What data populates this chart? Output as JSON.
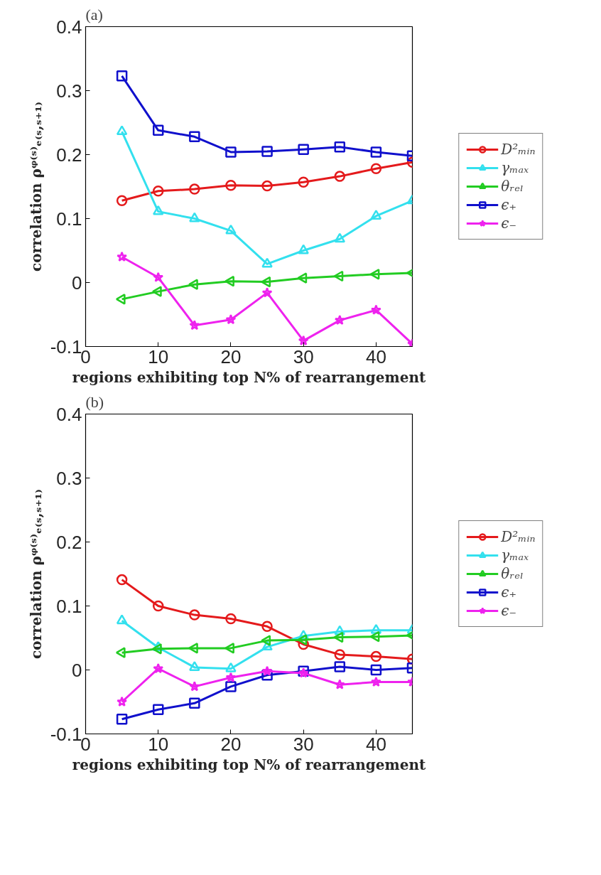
{
  "chart_data": [
    {
      "type": "line",
      "title": "(a)",
      "xlabel": "regions exhibiting top N% of rearrangement",
      "ylabel": "correlation ρᵠ⁽ˢ⁾ₑ₍ₛ,ₛ₊₁₎",
      "x": [
        5,
        10,
        15,
        20,
        25,
        30,
        35,
        40,
        45
      ],
      "xlim": [
        0,
        45
      ],
      "xticks": [
        0,
        10,
        20,
        30,
        40
      ],
      "ylim": [
        -0.1,
        0.4
      ],
      "yticks": [
        -0.1,
        0,
        0.1,
        0.2,
        0.3,
        0.4
      ],
      "grid": false,
      "legend": "right",
      "series": [
        {
          "name": "D²ₘᵢₙ",
          "color": "#e41a1c",
          "marker": "circle",
          "values": [
            0.128,
            0.143,
            0.146,
            0.152,
            0.151,
            0.157,
            0.166,
            0.178,
            0.188
          ]
        },
        {
          "name": "γₘₐₓ",
          "color": "#33e0ee",
          "marker": "triangle",
          "values": [
            0.236,
            0.111,
            0.1,
            0.081,
            0.029,
            0.05,
            0.068,
            0.104,
            0.128
          ]
        },
        {
          "name": "θᵣₑₗ",
          "color": "#22cc22",
          "marker": "triangle_left",
          "values": [
            -0.026,
            -0.014,
            -0.003,
            0.002,
            0.001,
            0.007,
            0.01,
            0.013,
            0.015
          ]
        },
        {
          "name": "ϵ₊",
          "color": "#1010cc",
          "marker": "square",
          "values": [
            0.323,
            0.238,
            0.228,
            0.204,
            0.205,
            0.208,
            0.212,
            0.204,
            0.198
          ]
        },
        {
          "name": "ϵ₋",
          "color": "#ee22ee",
          "marker": "star",
          "values": [
            0.04,
            0.008,
            -0.067,
            -0.058,
            -0.016,
            -0.091,
            -0.059,
            -0.043,
            -0.096
          ]
        }
      ]
    },
    {
      "type": "line",
      "title": "(b)",
      "xlabel": "regions exhibiting top N% of rearrangement",
      "ylabel": "correlation ρᵠ⁽ˢ⁾ₑ₍ₛ,ₛ₊₁₎",
      "x": [
        5,
        10,
        15,
        20,
        25,
        30,
        35,
        40,
        45
      ],
      "xlim": [
        0,
        45
      ],
      "xticks": [
        0,
        10,
        20,
        30,
        40
      ],
      "ylim": [
        -0.1,
        0.4
      ],
      "yticks": [
        -0.1,
        0,
        0.1,
        0.2,
        0.3,
        0.4
      ],
      "grid": false,
      "legend": "right",
      "series": [
        {
          "name": "D²ₘᵢₙ",
          "color": "#e41a1c",
          "marker": "circle",
          "values": [
            0.141,
            0.1,
            0.086,
            0.08,
            0.068,
            0.04,
            0.024,
            0.021,
            0.017
          ]
        },
        {
          "name": "γₘₐₓ",
          "color": "#33e0ee",
          "marker": "triangle",
          "values": [
            0.077,
            0.035,
            0.004,
            0.002,
            0.036,
            0.053,
            0.06,
            0.062,
            0.062
          ]
        },
        {
          "name": "θᵣₑₗ",
          "color": "#22cc22",
          "marker": "triangle_left",
          "values": [
            0.027,
            0.033,
            0.034,
            0.034,
            0.046,
            0.047,
            0.051,
            0.052,
            0.054
          ]
        },
        {
          "name": "ϵ₊",
          "color": "#1010cc",
          "marker": "square",
          "values": [
            -0.077,
            -0.062,
            -0.052,
            -0.026,
            -0.008,
            -0.002,
            0.005,
            0.0,
            0.003
          ]
        },
        {
          "name": "ϵ₋",
          "color": "#ee22ee",
          "marker": "star",
          "values": [
            -0.05,
            0.002,
            -0.026,
            -0.012,
            -0.002,
            -0.005,
            -0.023,
            -0.019,
            -0.019
          ]
        }
      ]
    }
  ]
}
